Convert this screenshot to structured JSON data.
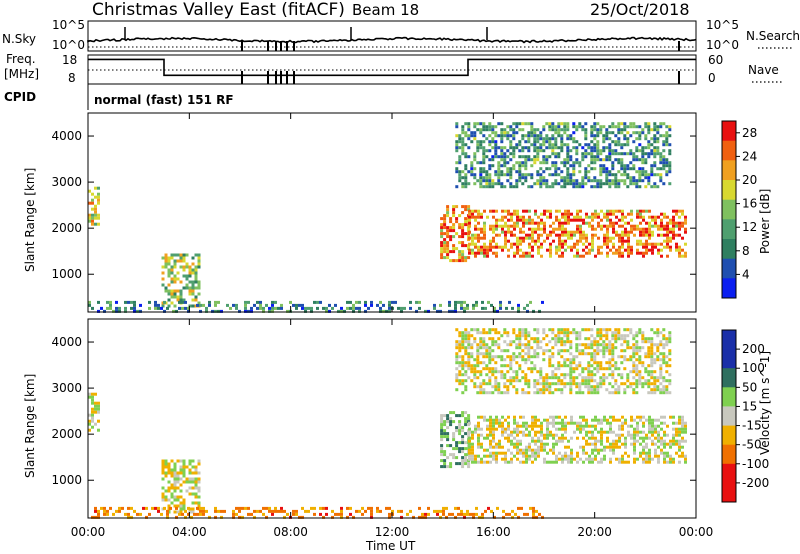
{
  "header": {
    "title": "Christmas Valley East (fitACF)",
    "beam": "Beam 18",
    "date": "25/Oct/2018"
  },
  "noise_panel": {
    "left_label": "N.Sky",
    "right_label": "N.Search",
    "left_ticks": [
      "10^5",
      "10^0"
    ],
    "right_ticks": [
      "10^5",
      "10^0"
    ]
  },
  "freq_panel": {
    "left_label_1": "Freq.",
    "left_label_2": "[MHz]",
    "right_label": "Nave",
    "left_ticks": [
      "18",
      "8"
    ],
    "right_ticks": [
      "60",
      "0"
    ],
    "cpid_label": "CPID",
    "cpid_text": "normal (fast) 151 RF",
    "freq_series": {
      "hours": [
        0,
        3.0,
        3.0,
        15.0,
        15.0,
        24
      ],
      "values_mhz": [
        16.5,
        16.5,
        11.0,
        11.0,
        16.5,
        16.5
      ]
    }
  },
  "chart_data": [
    {
      "type": "heatmap",
      "name": "power",
      "ylabel": "Slant Range [km]",
      "yticks": [
        1000,
        2000,
        3000,
        4000
      ],
      "ylim": [
        180,
        4500
      ],
      "xlim": [
        0,
        24
      ],
      "colorbar_label": "Power [dB]",
      "colorbar_ticks": [
        4,
        8,
        12,
        16,
        20,
        24,
        28
      ],
      "colorbar_range": [
        0,
        30
      ],
      "regions": [
        {
          "h0": 0.0,
          "h1": 0.4,
          "r0": 2100,
          "r1": 2900,
          "level": 18
        },
        {
          "h0": 2.9,
          "h1": 4.4,
          "r0": 300,
          "r1": 1450,
          "level": 16
        },
        {
          "h0": 13.9,
          "h1": 15.0,
          "r0": 1300,
          "r1": 2500,
          "level": 22
        },
        {
          "h0": 15.0,
          "h1": 23.6,
          "r0": 1400,
          "r1": 2400,
          "level": 23
        },
        {
          "h0": 14.5,
          "h1": 23.0,
          "r0": 2900,
          "r1": 4300,
          "level": 10
        },
        {
          "h0": 0.0,
          "h1": 18.0,
          "r0": 180,
          "r1": 420,
          "level": 9
        }
      ]
    },
    {
      "type": "heatmap",
      "name": "velocity",
      "ylabel": "Slant Range [km]",
      "yticks": [
        1000,
        2000,
        3000,
        4000
      ],
      "ylim": [
        180,
        4500
      ],
      "xlim": [
        0,
        24
      ],
      "xticks": [
        "00:00",
        "04:00",
        "08:00",
        "12:00",
        "16:00",
        "20:00",
        "00:00"
      ],
      "xlabel": "Time UT",
      "colorbar_label": "Velocity [m s^-1]",
      "colorbar_ticks": [
        200,
        100,
        50,
        15,
        -15,
        -50,
        -100,
        -200
      ],
      "regions": [
        {
          "h0": 0.0,
          "h1": 0.4,
          "r0": 2100,
          "r1": 2900,
          "v": 0
        },
        {
          "h0": 2.9,
          "h1": 4.4,
          "r0": 300,
          "r1": 1450,
          "v": 0
        },
        {
          "h0": 13.9,
          "h1": 15.0,
          "r0": 1300,
          "r1": 2500,
          "v": 30
        },
        {
          "h0": 15.0,
          "h1": 23.6,
          "r0": 1400,
          "r1": 2400,
          "v": 0
        },
        {
          "h0": 14.5,
          "h1": 23.0,
          "r0": 2900,
          "r1": 4300,
          "v": 0
        },
        {
          "h0": 0.0,
          "h1": 18.0,
          "r0": 180,
          "r1": 420,
          "v": -60
        }
      ]
    }
  ],
  "colors": {
    "power_scale": [
      "#0b1ff0",
      "#1f4fb0",
      "#2f7f60",
      "#4f9f6f",
      "#7fc05f",
      "#d8d830",
      "#f0a020",
      "#f06010",
      "#e81010"
    ],
    "velocity_scale": [
      "#1a2fa8",
      "#2f6f5f",
      "#3fa03f",
      "#7fd050",
      "#c8c8be",
      "#f0b000",
      "#f07000",
      "#e81010"
    ],
    "ground_gray": "#c8c8be"
  }
}
